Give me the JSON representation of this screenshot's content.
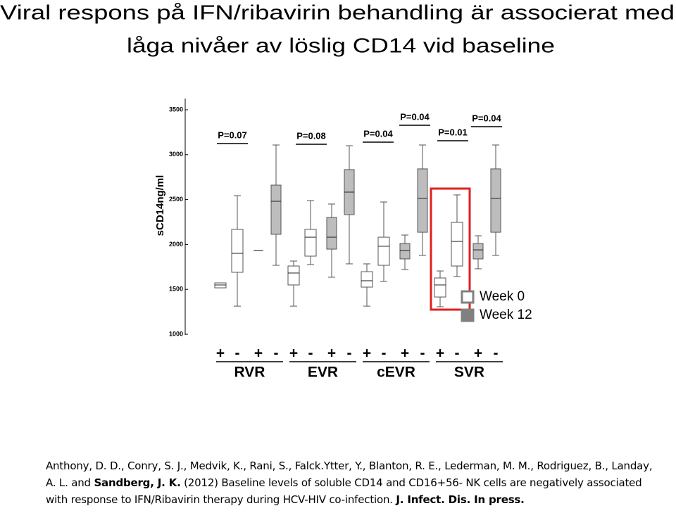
{
  "chart_data": {
    "type": "box",
    "title": [
      "Viral respons på IFN/ribavirin behandling är associerat med",
      "låga nivåer av löslig CD14 vid baseline"
    ],
    "y_label": "sCD14ng/ml",
    "categories": [
      "+",
      "-",
      "+",
      "-",
      "+",
      "-",
      "+",
      "-",
      "+",
      "-",
      "+",
      "-",
      "+",
      "-",
      "+",
      "-"
    ],
    "groups": [
      "RVR",
      "EVR",
      "cEVR",
      "SVR"
    ],
    "series": [
      {
        "name": "Week 0",
        "color": "#ffffff",
        "values": [
          [
            1517,
            1517,
            1549,
            1572,
            1572
          ],
          [
            1313,
            1690,
            1901,
            2168,
            2544
          ],
          null,
          null,
          [
            1313,
            1549,
            1682,
            1760,
            1815
          ],
          [
            1776,
            1870,
            2081,
            2168,
            2489
          ],
          null,
          null,
          [
            1313,
            1525,
            1596,
            1697,
            1784
          ],
          [
            1588,
            1768,
            1980,
            2081,
            2473
          ],
          null,
          null,
          [
            1306,
            1415,
            1549,
            1627,
            1705
          ],
          [
            1643,
            1760,
            2034,
            2246,
            2552
          ],
          null,
          null
        ]
      },
      {
        "name": "Week 12",
        "color": "#bdbdbd",
        "values": [
          null,
          null,
          [
            1933,
            1933,
            1933,
            1933,
            1933
          ],
          [
            1768,
            2113,
            2481,
            2661,
            3108
          ],
          null,
          null,
          [
            1635,
            1948,
            2081,
            2301,
            2450
          ],
          [
            1784,
            2332,
            2583,
            2834,
            3100
          ],
          null,
          null,
          [
            1721,
            1839,
            1933,
            2011,
            2105
          ],
          [
            1878,
            2136,
            2513,
            2842,
            3108
          ],
          null,
          null,
          [
            1729,
            1839,
            1940,
            2011,
            2097
          ],
          [
            1878,
            2136,
            2513,
            2842,
            3108
          ]
        ]
      }
    ],
    "annotations": [
      "P=0.07",
      "P=0.08",
      "P=0.04",
      "P=0.04",
      "P=0.01",
      "P=0.04"
    ],
    "ylim": [
      1000,
      3500
    ],
    "yticks": [
      1000,
      1500,
      2000,
      2500,
      3000,
      3500
    ],
    "legend": "bottom-right"
  },
  "citation": {
    "authors": "Anthony, D. D., Conry, S. J., Medvik, K., Rani, S., Falck.Ytter, Y., Blanton, R. E., Lederman, M. M., Rodriguez, B., Landay, A. L. and",
    "lead_author": "Sandberg, J. K.",
    "body": "(2012) Baseline levels of soluble CD14 and CD16+56- NK cells are negatively associated with response to IFN/Ribavirin therapy during HCV-HIV co-infection.",
    "journal": "J. Infect. Dis. In press."
  }
}
